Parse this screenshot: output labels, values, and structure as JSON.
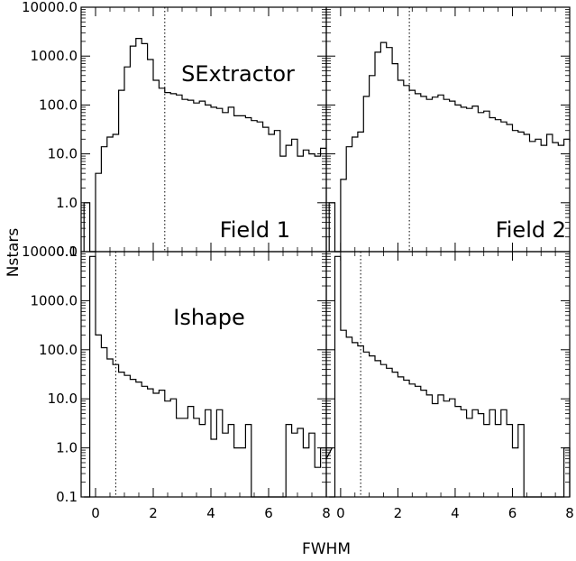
{
  "chart_data": {
    "type": "histogram",
    "layout": "2x2 panels",
    "xlabel": "FWHM",
    "ylabel": "Nstars",
    "xlim": [
      -0.5,
      8
    ],
    "ylim": [
      0.1,
      10000
    ],
    "y_scale": "log",
    "x_ticks": [
      "0",
      "2",
      "4",
      "6",
      "8"
    ],
    "y_ticks": [
      "0.1",
      "1.0",
      "10.0",
      "100.0",
      "1000.0",
      "10000.0"
    ],
    "bin_width": 0.2,
    "bin_start": -0.4,
    "panels": [
      {
        "id": "sextractor-field-1",
        "annotations": [
          "SExtractor",
          "Field 1"
        ],
        "vline_x": 2.4,
        "values": [
          1.0,
          0,
          4,
          14,
          22,
          25,
          200,
          600,
          1600,
          2300,
          1800,
          850,
          320,
          220,
          180,
          170,
          160,
          130,
          125,
          110,
          120,
          100,
          90,
          85,
          70,
          90,
          60,
          60,
          55,
          48,
          45,
          35,
          25,
          30,
          9,
          15,
          20,
          9,
          12,
          10,
          9,
          13
        ]
      },
      {
        "id": "sextractor-field-2",
        "annotations": [
          "Field 2"
        ],
        "vline_x": 2.4,
        "values": [
          1.0,
          0,
          3,
          14,
          22,
          28,
          150,
          400,
          1200,
          1900,
          1500,
          700,
          320,
          250,
          200,
          170,
          150,
          130,
          145,
          160,
          130,
          120,
          100,
          90,
          85,
          95,
          70,
          75,
          55,
          50,
          45,
          40,
          30,
          28,
          25,
          18,
          20,
          15,
          25,
          17,
          15,
          20,
          18
        ]
      },
      {
        "id": "ishape-field-1",
        "annotations": [
          "Ishape"
        ],
        "vline_x": 0.7,
        "values": [
          0,
          8000,
          200,
          110,
          65,
          50,
          35,
          30,
          25,
          22,
          18,
          16,
          13,
          15,
          9,
          10,
          4,
          4,
          7,
          4,
          3,
          6,
          1.5,
          6,
          2.0,
          3,
          1.0,
          1.0,
          3,
          0,
          0,
          0,
          0,
          0,
          0,
          3,
          2.0,
          2.5,
          1.0,
          2.0,
          0.4,
          1.0,
          0.6,
          1.0
        ]
      },
      {
        "id": "ishape-field-2",
        "annotations": [],
        "vline_x": 0.7,
        "values": [
          0,
          8000,
          250,
          180,
          140,
          120,
          90,
          75,
          60,
          50,
          42,
          35,
          28,
          24,
          20,
          18,
          15,
          12,
          8,
          12,
          9,
          10,
          7,
          6,
          4,
          6,
          5,
          3,
          6,
          3,
          6,
          3,
          1.0,
          3,
          0,
          0,
          0,
          0,
          0,
          0,
          0,
          1.0,
          0
        ]
      }
    ]
  }
}
